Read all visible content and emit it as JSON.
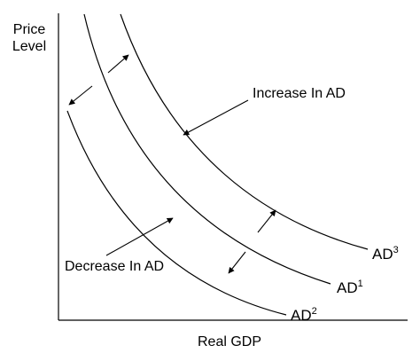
{
  "axes": {
    "y_label_line1": "Price",
    "y_label_line2": "Level",
    "x_label": "Real GDP"
  },
  "curves": [
    {
      "id": "ad1",
      "name": "AD",
      "sup": "1"
    },
    {
      "id": "ad2",
      "name": "AD",
      "sup": "2"
    },
    {
      "id": "ad3",
      "name": "AD",
      "sup": "3"
    }
  ],
  "annotations": {
    "increase": "Increase In AD",
    "decrease": "Decrease In AD"
  },
  "colors": {
    "ink": "#000000",
    "background": "#ffffff"
  }
}
